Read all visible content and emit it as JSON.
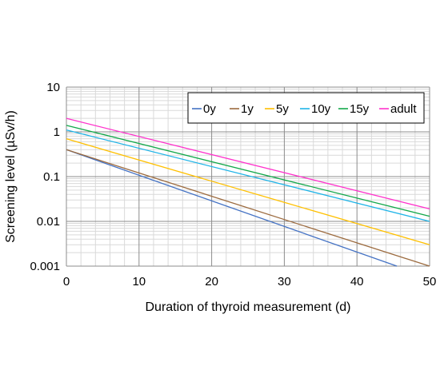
{
  "chart_data": {
    "type": "line",
    "xlabel": "Duration of thyroid measurement (d)",
    "ylabel": "Screening level (µSv/h)",
    "xlim": [
      0,
      50
    ],
    "ylim": [
      0.001,
      10
    ],
    "yscale": "log",
    "x_ticks": [
      "0",
      "10",
      "20",
      "30",
      "40",
      "50"
    ],
    "y_ticks": [
      "0.001",
      "0.01",
      "0.1",
      "1",
      "10"
    ],
    "grid": true,
    "legend_position": "top-right",
    "series": [
      {
        "name": "0y",
        "color": "#4472C4",
        "x": [
          0,
          45.5
        ],
        "y": [
          0.4,
          0.001
        ]
      },
      {
        "name": "1y",
        "color": "#9C6B3F",
        "x": [
          0,
          50
        ],
        "y": [
          0.4,
          0.001
        ]
      },
      {
        "name": "5y",
        "color": "#FFC000",
        "x": [
          0,
          50
        ],
        "y": [
          0.7,
          0.003
        ]
      },
      {
        "name": "10y",
        "color": "#1FB4E8",
        "x": [
          0,
          50
        ],
        "y": [
          1.1,
          0.01
        ]
      },
      {
        "name": "15y",
        "color": "#13A84B",
        "x": [
          0,
          50
        ],
        "y": [
          1.4,
          0.013
        ]
      },
      {
        "name": "adult",
        "color": "#FF33CC",
        "x": [
          0,
          50
        ],
        "y": [
          2.0,
          0.019
        ]
      }
    ]
  }
}
